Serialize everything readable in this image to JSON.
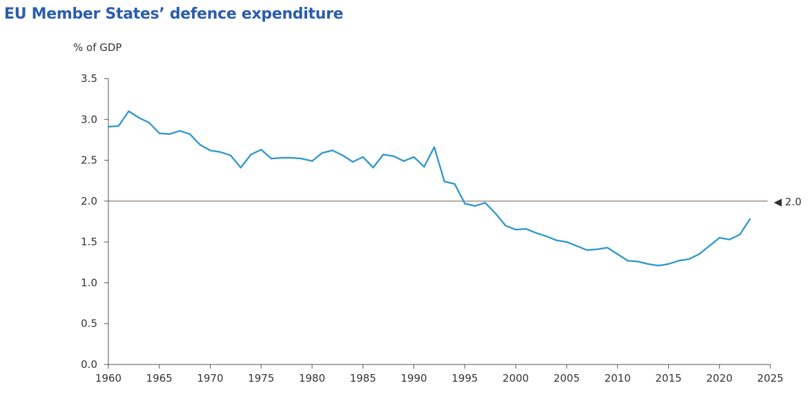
{
  "chart_data": {
    "type": "line",
    "title": "EU Member States’ defence expenditure",
    "xlabel": "",
    "ylabel": "% of GDP",
    "xlim": [
      1960,
      2025
    ],
    "ylim": [
      0,
      3.5
    ],
    "x_ticks": [
      "1960",
      "1965",
      "1970",
      "1975",
      "1980",
      "1985",
      "1990",
      "1995",
      "2000",
      "2005",
      "2010",
      "2015",
      "2020",
      "2025"
    ],
    "y_ticks": [
      "0.0",
      "0.5",
      "1.0",
      "1.5",
      "2.0",
      "2.5",
      "3.0",
      "3.5"
    ],
    "grid": false,
    "legend": "none",
    "reference_line": {
      "value": 2.0,
      "label": "2.0",
      "marker": "◀"
    },
    "series": [
      {
        "name": "EU Member States defence expenditure",
        "x": [
          1960,
          1961,
          1962,
          1963,
          1964,
          1965,
          1966,
          1967,
          1968,
          1969,
          1970,
          1971,
          1972,
          1973,
          1974,
          1975,
          1976,
          1977,
          1978,
          1979,
          1980,
          1981,
          1982,
          1983,
          1984,
          1985,
          1986,
          1987,
          1988,
          1989,
          1990,
          1991,
          1992,
          1993,
          1994,
          1995,
          1996,
          1997,
          1998,
          1999,
          2000,
          2001,
          2002,
          2003,
          2004,
          2005,
          2006,
          2007,
          2008,
          2009,
          2010,
          2011,
          2012,
          2013,
          2014,
          2015,
          2016,
          2017,
          2018,
          2019,
          2020,
          2021,
          2022,
          2023
        ],
        "values": [
          2.91,
          2.92,
          3.1,
          3.02,
          2.96,
          2.83,
          2.82,
          2.86,
          2.82,
          2.69,
          2.62,
          2.6,
          2.56,
          2.41,
          2.57,
          2.63,
          2.52,
          2.53,
          2.53,
          2.52,
          2.49,
          2.59,
          2.62,
          2.56,
          2.48,
          2.54,
          2.41,
          2.57,
          2.55,
          2.49,
          2.54,
          2.42,
          2.66,
          2.24,
          2.21,
          1.97,
          1.94,
          1.98,
          1.85,
          1.7,
          1.65,
          1.66,
          1.61,
          1.57,
          1.52,
          1.5,
          1.45,
          1.4,
          1.41,
          1.43,
          1.35,
          1.27,
          1.26,
          1.23,
          1.21,
          1.23,
          1.27,
          1.29,
          1.35,
          1.45,
          1.55,
          1.53,
          1.59,
          1.78
        ],
        "color": "#3399cc"
      }
    ],
    "colors": {
      "title": "#2b5dab",
      "line": "#3399cc",
      "reference": "#8a7a72",
      "axis": "#555555"
    }
  }
}
